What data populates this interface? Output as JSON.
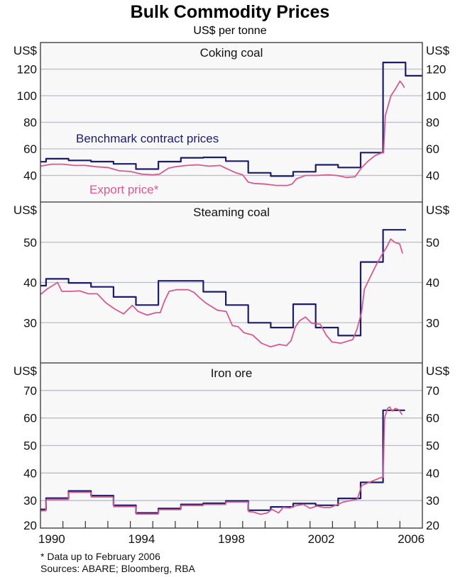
{
  "chart_data": {
    "type": "line",
    "title": "Bulk Commodity Prices",
    "subtitle": "US$ per tonne",
    "x_ticks": [
      "1990",
      "1994",
      "1998",
      "2002",
      "2006"
    ],
    "x_tick_years": [
      1990,
      1994,
      1998,
      2002,
      2006
    ],
    "xlim": [
      1990,
      2007
    ],
    "colors": {
      "benchmark": "#1c1c6b",
      "export": "#d65a91",
      "grid": "#b9bdc7",
      "plot_bg": "#f8f8f8"
    },
    "annotations": {
      "benchmark_label": "Benchmark contract prices",
      "export_label": "Export price*"
    },
    "footnotes": [
      "*   Data up to February 2006",
      "Sources: ABARE; Bloomberg, RBA"
    ],
    "panels": [
      {
        "title": "Coking coal",
        "unit": "US$",
        "ylim": [
          20,
          140
        ],
        "y_ticks": [
          40,
          60,
          80,
          100,
          120
        ],
        "y_tick_labels": [
          "40",
          "60",
          "80",
          "100",
          "120"
        ],
        "series": [
          {
            "name": "Benchmark contract prices",
            "step": true,
            "points": [
              [
                1990,
                50.3
              ],
              [
                1990.25,
                52.6
              ],
              [
                1991.25,
                51.3
              ],
              [
                1992.25,
                50.4
              ],
              [
                1993.25,
                48.7
              ],
              [
                1994.25,
                44.8
              ],
              [
                1995.25,
                50.4
              ],
              [
                1996.25,
                53.3
              ],
              [
                1997.25,
                53.6
              ],
              [
                1998.25,
                50.8
              ],
              [
                1999.25,
                42
              ],
              [
                2000.25,
                39.5
              ],
              [
                2001.25,
                42.8
              ],
              [
                2002.25,
                48
              ],
              [
                2003.25,
                46
              ],
              [
                2004.25,
                57.2
              ],
              [
                2005.25,
                125
              ],
              [
                2006.25,
                115
              ],
              [
                2007,
                115
              ]
            ]
          },
          {
            "name": "Export price*",
            "points": [
              [
                1990,
                47
              ],
              [
                1990.5,
                48.5
              ],
              [
                1991,
                48.5
              ],
              [
                1991.5,
                47.5
              ],
              [
                1992,
                47.5
              ],
              [
                1992.5,
                46.5
              ],
              [
                1993,
                46
              ],
              [
                1993.5,
                43.5
              ],
              [
                1994,
                43
              ],
              [
                1994.5,
                41
              ],
              [
                1995,
                40.5
              ],
              [
                1995.3,
                41
              ],
              [
                1995.7,
                45.5
              ],
              [
                1996,
                46.5
              ],
              [
                1996.5,
                47.5
              ],
              [
                1997,
                48
              ],
              [
                1997.5,
                47
              ],
              [
                1998,
                47.5
              ],
              [
                1998.3,
                45
              ],
              [
                1998.7,
                42
              ],
              [
                1999,
                40.5
              ],
              [
                1999.25,
                35
              ],
              [
                1999.5,
                34
              ],
              [
                2000,
                33.5
              ],
              [
                2000.5,
                32.5
              ],
              [
                2001,
                32.5
              ],
              [
                2001.2,
                33.5
              ],
              [
                2001.4,
                37.5
              ],
              [
                2001.8,
                40
              ],
              [
                2002.3,
                40
              ],
              [
                2002.8,
                40.5
              ],
              [
                2003.2,
                40
              ],
              [
                2003.6,
                38.5
              ],
              [
                2004,
                39
              ],
              [
                2004.3,
                46
              ],
              [
                2004.6,
                51
              ],
              [
                2004.9,
                55
              ],
              [
                2005.2,
                57
              ],
              [
                2005.27,
                57
              ],
              [
                2005.35,
                85
              ],
              [
                2005.6,
                100
              ],
              [
                2005.8,
                105
              ],
              [
                2006,
                111
              ],
              [
                2006.1,
                109
              ],
              [
                2006.2,
                106
              ]
            ]
          }
        ]
      },
      {
        "title": "Steaming coal",
        "unit": "US$",
        "ylim": [
          20,
          60
        ],
        "y_ticks": [
          30,
          40,
          50
        ],
        "y_tick_labels": [
          "30",
          "40",
          "50"
        ],
        "series": [
          {
            "name": "Benchmark contract prices",
            "step": true,
            "points": [
              [
                1990,
                39.2
              ],
              [
                1990.25,
                40.9
              ],
              [
                1991.25,
                39.9
              ],
              [
                1992.25,
                38.9
              ],
              [
                1993.25,
                36.4
              ],
              [
                1994.25,
                34.4
              ],
              [
                1995.25,
                40.4
              ],
              [
                1997.25,
                37.7
              ],
              [
                1998.25,
                34.4
              ],
              [
                1999.25,
                30
              ],
              [
                2000.25,
                28.8
              ],
              [
                2001.25,
                34.6
              ],
              [
                2002.25,
                28.8
              ],
              [
                2003.25,
                26.8
              ],
              [
                2004.25,
                45.1
              ],
              [
                2005.25,
                53.1
              ],
              [
                2006.27,
                53.1
              ]
            ]
          },
          {
            "name": "Export price*",
            "points": [
              [
                1990,
                37
              ],
              [
                1990.3,
                38.4
              ],
              [
                1990.76,
                40
              ],
              [
                1990.95,
                37.8
              ],
              [
                1991.35,
                37.8
              ],
              [
                1991.74,
                37.9
              ],
              [
                1992.13,
                37.2
              ],
              [
                1992.52,
                37.2
              ],
              [
                1992.92,
                34.9
              ],
              [
                1993.31,
                33.4
              ],
              [
                1993.7,
                32.2
              ],
              [
                1994.09,
                34.3
              ],
              [
                1994.35,
                32.8
              ],
              [
                1994.75,
                31.9
              ],
              [
                1995.14,
                32.5
              ],
              [
                1995.33,
                32.5
              ],
              [
                1995.53,
                35.5
              ],
              [
                1995.73,
                37.8
              ],
              [
                1996.05,
                38.2
              ],
              [
                1996.58,
                38.2
              ],
              [
                1996.84,
                37.5
              ],
              [
                1997.1,
                36.1
              ],
              [
                1997.36,
                34.9
              ],
              [
                1997.88,
                33.1
              ],
              [
                1998.27,
                32.8
              ],
              [
                1998.54,
                29.3
              ],
              [
                1998.8,
                29
              ],
              [
                1999.06,
                27.5
              ],
              [
                1999.45,
                26.9
              ],
              [
                1999.84,
                24.9
              ],
              [
                2000.24,
                24
              ],
              [
                2000.63,
                24.6
              ],
              [
                2000.95,
                24.3
              ],
              [
                2001.15,
                25.5
              ],
              [
                2001.35,
                29
              ],
              [
                2001.54,
                30.5
              ],
              [
                2001.8,
                31.4
              ],
              [
                2002.06,
                29.9
              ],
              [
                2002.46,
                29.6
              ],
              [
                2002.72,
                26.9
              ],
              [
                2002.98,
                25.2
              ],
              [
                2003.37,
                24.9
              ],
              [
                2003.9,
                25.8
              ],
              [
                2004.09,
                28.4
              ],
              [
                2004.29,
                32.5
              ],
              [
                2004.42,
                38.4
              ],
              [
                2004.68,
                41.4
              ],
              [
                2004.94,
                44.3
              ],
              [
                2005.2,
                46.9
              ],
              [
                2005.4,
                48.7
              ],
              [
                2005.59,
                50.8
              ],
              [
                2005.79,
                49.9
              ],
              [
                2005.99,
                49.6
              ],
              [
                2006.12,
                47.2
              ]
            ]
          }
        ]
      },
      {
        "title": "Iron ore",
        "unit": "US$",
        "ylim": [
          20,
          80
        ],
        "y_ticks": [
          20,
          30,
          40,
          50,
          60,
          70
        ],
        "y_tick_labels": [
          "20",
          "30",
          "40",
          "50",
          "60",
          "70"
        ],
        "series": [
          {
            "name": "Benchmark contract prices",
            "step": true,
            "points": [
              [
                1990,
                26.8
              ],
              [
                1990.25,
                30.9
              ],
              [
                1991.25,
                33.5
              ],
              [
                1992.25,
                31.8
              ],
              [
                1993.25,
                28.3
              ],
              [
                1994.25,
                25.5
              ],
              [
                1995.25,
                27.1
              ],
              [
                1996.25,
                28.6
              ],
              [
                1997.25,
                29
              ],
              [
                1998.25,
                29.9
              ],
              [
                1999.25,
                26.5
              ],
              [
                2000.25,
                27.7
              ],
              [
                2001.25,
                28.9
              ],
              [
                2002.25,
                28.3
              ],
              [
                2003.25,
                30.8
              ],
              [
                2004.25,
                36.6
              ],
              [
                2005.25,
                62.8
              ],
              [
                2006.23,
                62.8
              ]
            ]
          },
          {
            "name": "Export price*",
            "points": [
              [
                1990,
                26.3
              ],
              [
                1990.24,
                26.3
              ],
              [
                1990.26,
                30.4
              ],
              [
                1991.24,
                30.4
              ],
              [
                1991.26,
                33
              ],
              [
                1992.24,
                33
              ],
              [
                1992.26,
                31.3
              ],
              [
                1993.24,
                31.3
              ],
              [
                1993.26,
                27.8
              ],
              [
                1994.24,
                27.8
              ],
              [
                1994.26,
                25.1
              ],
              [
                1995.24,
                25.1
              ],
              [
                1995.26,
                26.7
              ],
              [
                1996.24,
                26.7
              ],
              [
                1996.26,
                28.2
              ],
              [
                1997.24,
                28.2
              ],
              [
                1997.26,
                28.6
              ],
              [
                1998.24,
                28.6
              ],
              [
                1998.26,
                29.5
              ],
              [
                1999.24,
                29.5
              ],
              [
                1999.26,
                26
              ],
              [
                1999.5,
                25.8
              ],
              [
                1999.8,
                25
              ],
              [
                2000.1,
                25.5
              ],
              [
                2000.3,
                26.8
              ],
              [
                2000.6,
                25.5
              ],
              [
                2000.8,
                27.5
              ],
              [
                2001.1,
                27.3
              ],
              [
                2001.4,
                28.2
              ],
              [
                2001.7,
                28.6
              ],
              [
                2002,
                27.2
              ],
              [
                2002.3,
                28
              ],
              [
                2002.6,
                27.5
              ],
              [
                2002.9,
                27.5
              ],
              [
                2003.2,
                28.5
              ],
              [
                2003.5,
                29.5
              ],
              [
                2003.8,
                30
              ],
              [
                2004.1,
                30.5
              ],
              [
                2004.3,
                35.5
              ],
              [
                2004.6,
                36.5
              ],
              [
                2004.9,
                37.5
              ],
              [
                2005.2,
                38.5
              ],
              [
                2005.25,
                38.5
              ],
              [
                2005.32,
                60
              ],
              [
                2005.45,
                63.5
              ],
              [
                2005.55,
                64
              ],
              [
                2005.65,
                62.5
              ],
              [
                2005.8,
                63.5
              ],
              [
                2005.95,
                63
              ],
              [
                2006.1,
                61.2
              ]
            ]
          }
        ]
      }
    ]
  }
}
